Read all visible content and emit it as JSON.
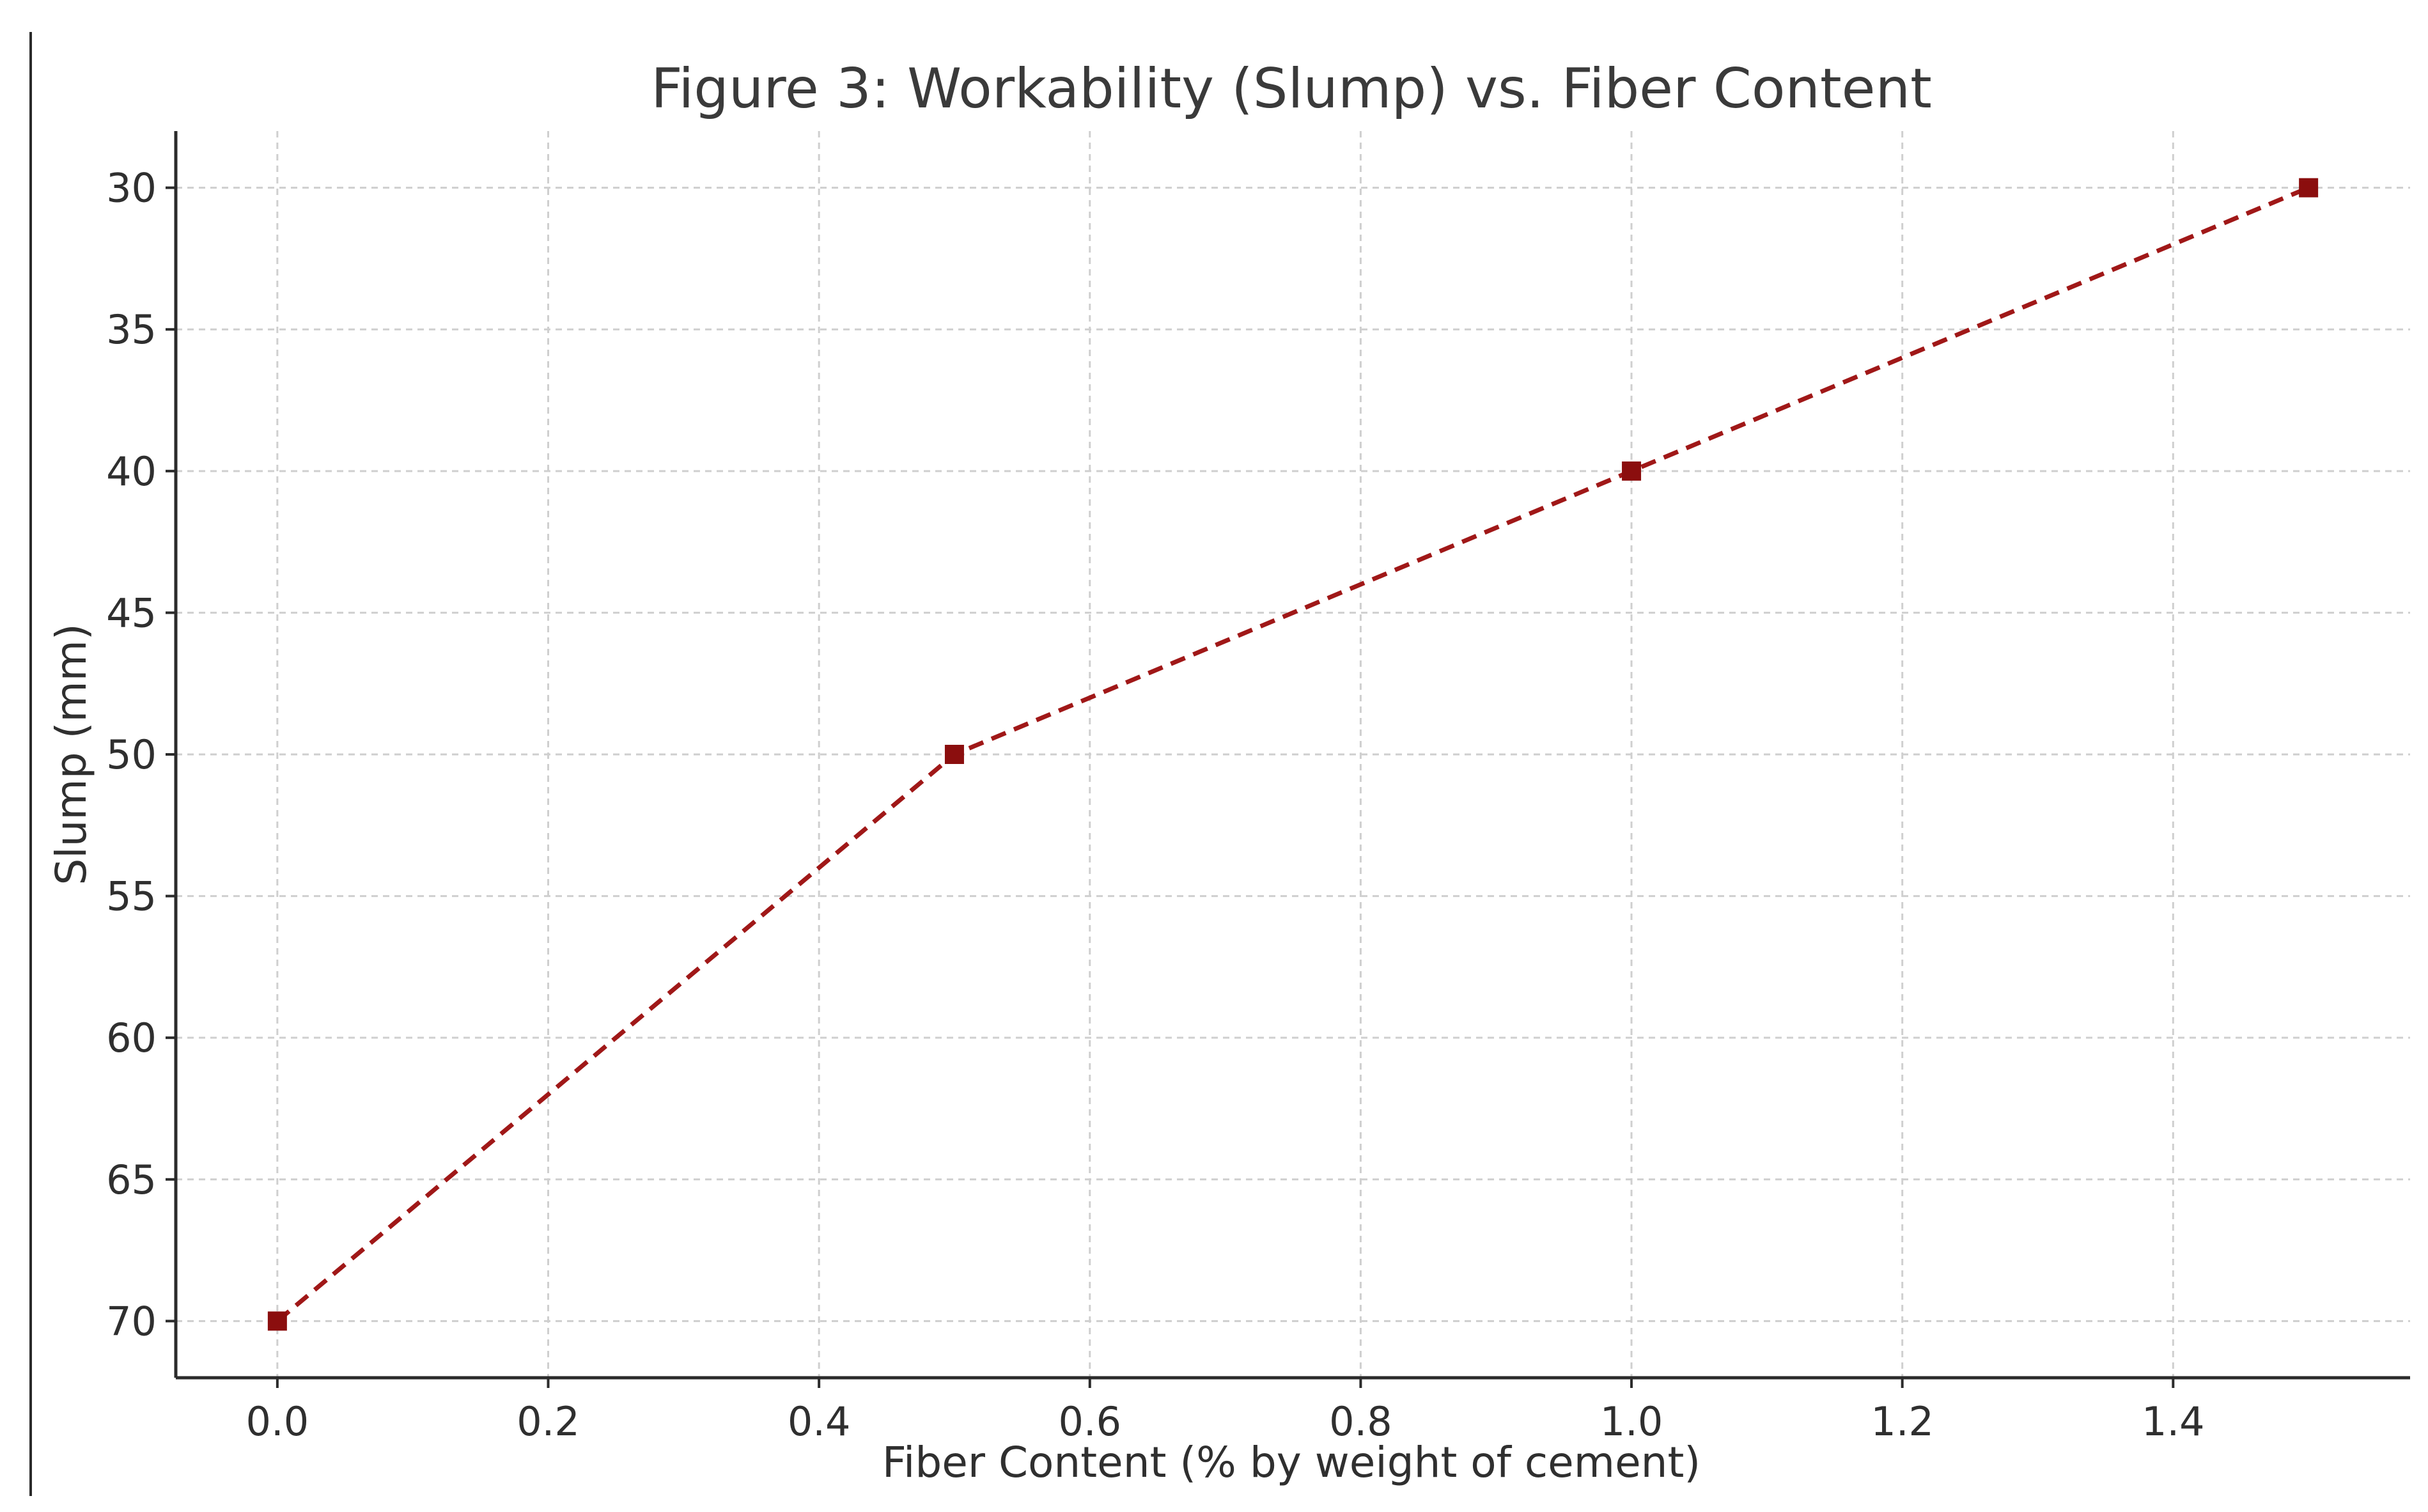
{
  "chart_data": {
    "type": "line",
    "title": "Figure 3: Workability (Slump) vs. Fiber Content",
    "xlabel": "Fiber Content (% by weight of cement)",
    "ylabel": "Slump (mm)",
    "x": [
      0.0,
      0.5,
      1.0,
      1.5
    ],
    "series": [
      {
        "values": [
          70,
          50,
          40,
          30
        ],
        "color": "#a01818"
      }
    ],
    "xlim": [
      -0.075,
      1.575
    ],
    "ylim": [
      72,
      28
    ],
    "y_inverted": true,
    "xticks": [
      0.0,
      0.2,
      0.4,
      0.6,
      0.8,
      1.0,
      1.2,
      1.4
    ],
    "xtick_labels": [
      "0.0",
      "0.2",
      "0.4",
      "0.6",
      "0.8",
      "1.0",
      "1.2",
      "1.4"
    ],
    "yticks": [
      30,
      35,
      40,
      45,
      50,
      55,
      60,
      65,
      70
    ],
    "ytick_labels": [
      "30",
      "35",
      "40",
      "45",
      "50",
      "55",
      "60",
      "65",
      "70"
    ],
    "grid": true,
    "marker": "square",
    "line_style": "dashed"
  }
}
